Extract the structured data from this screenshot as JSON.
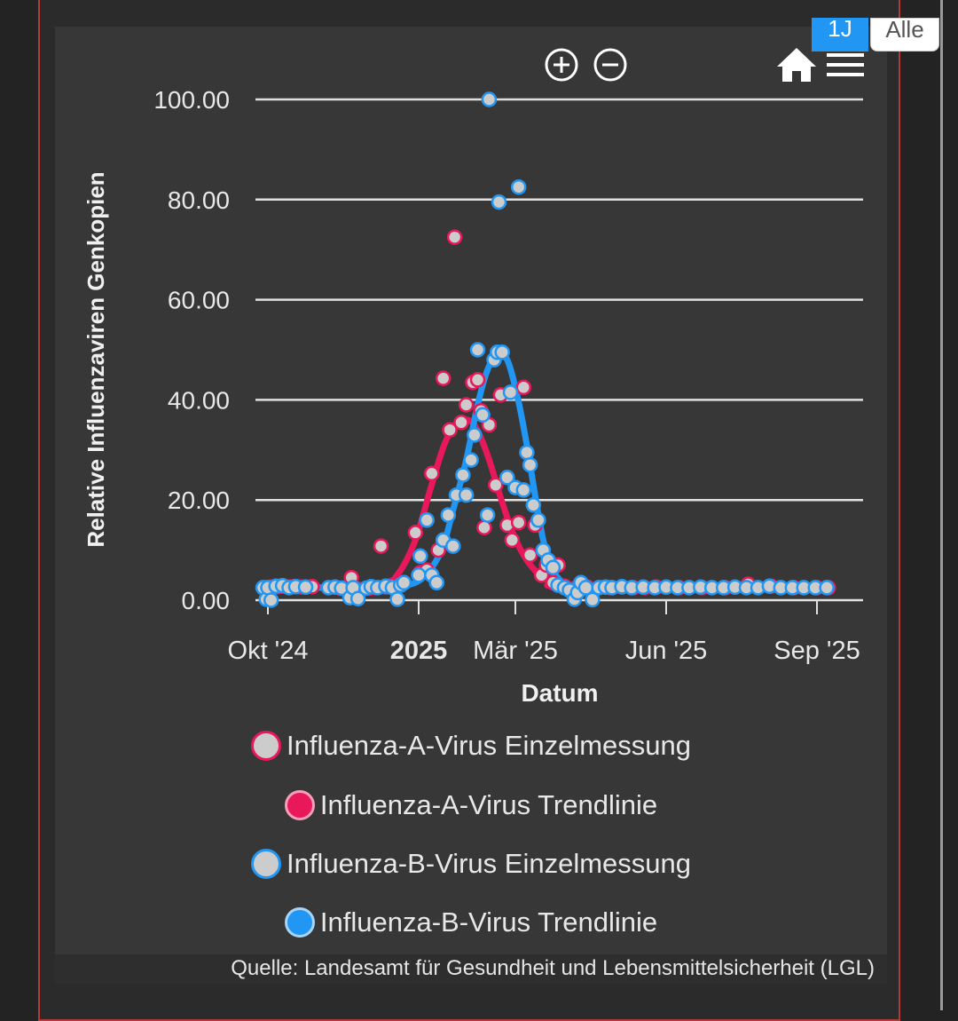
{
  "range_buttons": {
    "active": "1J",
    "inactive": "Alle"
  },
  "toolbar": {
    "zoom_in_icon": "zoom-in-icon",
    "zoom_out_icon": "zoom-out-icon",
    "home_icon": "home-icon",
    "menu_icon": "menu-icon"
  },
  "source": "Quelle: Landesamt für Gesundheit und Lebensmittelsicherheit (LGL)",
  "colors": {
    "influenza_a": "#e8185a",
    "influenza_b": "#2196f3",
    "marker_fill": "#cccccc",
    "grid": "#e0e0e0",
    "text": "#e8e8e8"
  },
  "legend": [
    {
      "label": "Influenza-A-Virus Einzelmessung",
      "type": "scatter-a"
    },
    {
      "label": "Influenza-A-Virus Trendlinie",
      "type": "line-a"
    },
    {
      "label": "Influenza-B-Virus Einzelmessung",
      "type": "scatter-b"
    },
    {
      "label": "Influenza-B-Virus Trendlinie",
      "type": "line-b"
    }
  ],
  "chart_data": {
    "type": "scatter",
    "title": "",
    "xlabel": "Datum",
    "ylabel": "Relative Influenzaviren Genkopien",
    "ylim": [
      0,
      100
    ],
    "yticks": [
      0,
      20,
      40,
      60,
      80,
      100
    ],
    "ytick_labels": [
      "0.00",
      "20.00",
      "40.00",
      "60.00",
      "80.00",
      "100.00"
    ],
    "xlim": [
      "2024-09-26",
      "2025-09-30"
    ],
    "xticks": [
      {
        "date": "2024-10-01",
        "label": "Okt '24",
        "bold": false
      },
      {
        "date": "2025-01-01",
        "label": "2025",
        "bold": true
      },
      {
        "date": "2025-03-01",
        "label": "Mär '25",
        "bold": false
      },
      {
        "date": "2025-06-01",
        "label": "Jun '25",
        "bold": false
      },
      {
        "date": "2025-09-01",
        "label": "Sep '25",
        "bold": false
      }
    ],
    "series": [
      {
        "name": "Influenza-A-Virus Einzelmessung",
        "kind": "scatter",
        "color": "#e8185a",
        "points": [
          [
            "2024-09-30",
            2.5
          ],
          [
            "2024-10-03",
            2.6
          ],
          [
            "2024-10-07",
            2.7
          ],
          [
            "2024-10-10",
            2.8
          ],
          [
            "2024-10-14",
            2.6
          ],
          [
            "2024-10-17",
            2.7
          ],
          [
            "2024-10-21",
            2.6
          ],
          [
            "2024-10-28",
            2.7
          ],
          [
            "2024-11-11",
            2.6
          ],
          [
            "2024-11-14",
            2.4
          ],
          [
            "2024-11-18",
            2.5
          ],
          [
            "2024-11-21",
            4.5
          ],
          [
            "2024-11-25",
            2.2
          ],
          [
            "2024-12-02",
            2.4
          ],
          [
            "2024-12-05",
            2.5
          ],
          [
            "2024-12-09",
            10.8
          ],
          [
            "2024-12-12",
            2.6
          ],
          [
            "2024-12-16",
            3.0
          ],
          [
            "2024-12-19",
            2.8
          ],
          [
            "2024-12-23",
            3.5
          ],
          [
            "2024-12-30",
            13.5
          ],
          [
            "2025-01-02",
            5.5
          ],
          [
            "2025-01-06",
            6.0
          ],
          [
            "2025-01-09",
            25.3
          ],
          [
            "2025-01-13",
            10.0
          ],
          [
            "2025-01-16",
            44.3
          ],
          [
            "2025-01-20",
            34.0
          ],
          [
            "2025-01-23",
            72.5
          ],
          [
            "2025-01-27",
            35.5
          ],
          [
            "2025-01-30",
            39.0
          ],
          [
            "2025-02-03",
            43.5
          ],
          [
            "2025-02-06",
            44.0
          ],
          [
            "2025-02-08",
            37.8
          ],
          [
            "2025-02-10",
            14.5
          ],
          [
            "2025-02-13",
            35.0
          ],
          [
            "2025-02-17",
            23.0
          ],
          [
            "2025-02-20",
            41.0
          ],
          [
            "2025-02-24",
            15.0
          ],
          [
            "2025-02-27",
            12.0
          ],
          [
            "2025-03-03",
            15.5
          ],
          [
            "2025-03-06",
            42.5
          ],
          [
            "2025-03-10",
            9.0
          ],
          [
            "2025-03-13",
            15.0
          ],
          [
            "2025-03-17",
            5.0
          ],
          [
            "2025-03-20",
            7.0
          ],
          [
            "2025-03-24",
            3.5
          ],
          [
            "2025-03-27",
            7.0
          ],
          [
            "2025-03-31",
            2.8
          ],
          [
            "2025-04-07",
            2.5
          ],
          [
            "2025-04-14",
            2.6
          ],
          [
            "2025-04-21",
            2.5
          ],
          [
            "2025-04-28",
            2.5
          ],
          [
            "2025-05-05",
            2.6
          ],
          [
            "2025-05-12",
            2.5
          ],
          [
            "2025-05-19",
            2.5
          ],
          [
            "2025-05-26",
            2.6
          ],
          [
            "2025-06-09",
            2.5
          ],
          [
            "2025-06-23",
            2.5
          ],
          [
            "2025-07-07",
            2.5
          ],
          [
            "2025-07-21",
            3.2
          ],
          [
            "2025-08-04",
            2.8
          ],
          [
            "2025-08-18",
            2.5
          ],
          [
            "2025-09-01",
            2.5
          ],
          [
            "2025-09-08",
            2.5
          ]
        ]
      },
      {
        "name": "Influenza-A-Virus Trendlinie",
        "kind": "line",
        "color": "#e8185a",
        "points": [
          [
            "2024-09-30",
            2.5
          ],
          [
            "2024-11-15",
            2.6
          ],
          [
            "2024-12-10",
            2.8
          ],
          [
            "2024-12-20",
            5.5
          ],
          [
            "2024-12-30",
            12.0
          ],
          [
            "2025-01-08",
            22.0
          ],
          [
            "2025-01-16",
            30.5
          ],
          [
            "2025-01-22",
            34.5
          ],
          [
            "2025-01-28",
            36.0
          ],
          [
            "2025-02-04",
            35.0
          ],
          [
            "2025-02-12",
            29.0
          ],
          [
            "2025-02-20",
            20.5
          ],
          [
            "2025-02-28",
            13.0
          ],
          [
            "2025-03-08",
            8.0
          ],
          [
            "2025-03-16",
            5.0
          ],
          [
            "2025-03-24",
            3.5
          ],
          [
            "2025-04-05",
            2.7
          ],
          [
            "2025-09-10",
            2.5
          ]
        ]
      },
      {
        "name": "Influenza-B-Virus Einzelmessung",
        "kind": "scatter",
        "color": "#2196f3",
        "points": [
          [
            "2024-09-28",
            2.5
          ],
          [
            "2024-09-30",
            0.2
          ],
          [
            "2024-10-01",
            2.5
          ],
          [
            "2024-10-03",
            0.0
          ],
          [
            "2024-10-06",
            2.8
          ],
          [
            "2024-10-10",
            2.9
          ],
          [
            "2024-10-14",
            2.5
          ],
          [
            "2024-10-18",
            2.7
          ],
          [
            "2024-10-24",
            2.6
          ],
          [
            "2024-11-07",
            2.5
          ],
          [
            "2024-11-11",
            2.6
          ],
          [
            "2024-11-15",
            2.4
          ],
          [
            "2024-11-20",
            0.5
          ],
          [
            "2024-11-22",
            2.5
          ],
          [
            "2024-11-25",
            0.3
          ],
          [
            "2024-11-30",
            2.4
          ],
          [
            "2024-12-03",
            2.7
          ],
          [
            "2024-12-07",
            2.5
          ],
          [
            "2024-12-12",
            2.8
          ],
          [
            "2024-12-16",
            2.5
          ],
          [
            "2024-12-19",
            0.2
          ],
          [
            "2024-12-21",
            3.0
          ],
          [
            "2024-12-23",
            3.5
          ],
          [
            "2025-01-01",
            5.0
          ],
          [
            "2025-01-02",
            8.8
          ],
          [
            "2025-01-06",
            16.0
          ],
          [
            "2025-01-09",
            5.0
          ],
          [
            "2025-01-12",
            3.5
          ],
          [
            "2025-01-16",
            12.0
          ],
          [
            "2025-01-19",
            17.0
          ],
          [
            "2025-01-22",
            10.8
          ],
          [
            "2025-01-24",
            21.0
          ],
          [
            "2025-01-28",
            25.0
          ],
          [
            "2025-01-30",
            21.0
          ],
          [
            "2025-02-02",
            28.0
          ],
          [
            "2025-02-04",
            33.0
          ],
          [
            "2025-02-06",
            50.0
          ],
          [
            "2025-02-09",
            37.0
          ],
          [
            "2025-02-12",
            17.0
          ],
          [
            "2025-02-13",
            100.0
          ],
          [
            "2025-02-16",
            48.0
          ],
          [
            "2025-02-18",
            49.5
          ],
          [
            "2025-02-19",
            79.5
          ],
          [
            "2025-02-21",
            49.5
          ],
          [
            "2025-02-24",
            24.5
          ],
          [
            "2025-02-26",
            41.5
          ],
          [
            "2025-03-01",
            22.5
          ],
          [
            "2025-03-03",
            82.5
          ],
          [
            "2025-03-06",
            22.0
          ],
          [
            "2025-03-08",
            29.5
          ],
          [
            "2025-03-10",
            27.0
          ],
          [
            "2025-03-12",
            19.0
          ],
          [
            "2025-03-15",
            16.0
          ],
          [
            "2025-03-18",
            10.0
          ],
          [
            "2025-03-21",
            8.0
          ],
          [
            "2025-03-24",
            6.5
          ],
          [
            "2025-03-27",
            3.0
          ],
          [
            "2025-03-31",
            2.5
          ],
          [
            "2025-04-03",
            2.0
          ],
          [
            "2025-04-06",
            0.2
          ],
          [
            "2025-04-08",
            1.5
          ],
          [
            "2025-04-10",
            3.5
          ],
          [
            "2025-04-13",
            2.5
          ],
          [
            "2025-04-17",
            0.1
          ],
          [
            "2025-04-21",
            2.5
          ],
          [
            "2025-04-25",
            2.6
          ],
          [
            "2025-04-29",
            2.5
          ],
          [
            "2025-05-05",
            2.7
          ],
          [
            "2025-05-11",
            2.5
          ],
          [
            "2025-05-18",
            2.6
          ],
          [
            "2025-05-25",
            2.5
          ],
          [
            "2025-06-01",
            2.6
          ],
          [
            "2025-06-08",
            2.5
          ],
          [
            "2025-06-15",
            2.5
          ],
          [
            "2025-06-22",
            2.6
          ],
          [
            "2025-06-29",
            2.5
          ],
          [
            "2025-07-06",
            2.5
          ],
          [
            "2025-07-13",
            2.6
          ],
          [
            "2025-07-20",
            2.5
          ],
          [
            "2025-07-27",
            2.5
          ],
          [
            "2025-08-03",
            2.8
          ],
          [
            "2025-08-10",
            2.5
          ],
          [
            "2025-08-17",
            2.5
          ],
          [
            "2025-08-24",
            2.5
          ],
          [
            "2025-08-31",
            2.5
          ],
          [
            "2025-09-07",
            2.5
          ]
        ]
      },
      {
        "name": "Influenza-B-Virus Trendlinie",
        "kind": "line",
        "color": "#2196f3",
        "points": [
          [
            "2024-09-30",
            2.6
          ],
          [
            "2024-12-01",
            2.5
          ],
          [
            "2024-12-25",
            3.0
          ],
          [
            "2025-01-05",
            5.0
          ],
          [
            "2025-01-15",
            10.0
          ],
          [
            "2025-01-22",
            18.0
          ],
          [
            "2025-01-30",
            28.0
          ],
          [
            "2025-02-06",
            39.0
          ],
          [
            "2025-02-12",
            46.0
          ],
          [
            "2025-02-18",
            49.0
          ],
          [
            "2025-02-24",
            48.0
          ],
          [
            "2025-03-02",
            41.0
          ],
          [
            "2025-03-08",
            31.0
          ],
          [
            "2025-03-13",
            21.0
          ],
          [
            "2025-03-18",
            12.0
          ],
          [
            "2025-03-23",
            6.5
          ],
          [
            "2025-03-30",
            3.5
          ],
          [
            "2025-04-08",
            2.4
          ],
          [
            "2025-09-10",
            2.5
          ]
        ]
      }
    ]
  }
}
